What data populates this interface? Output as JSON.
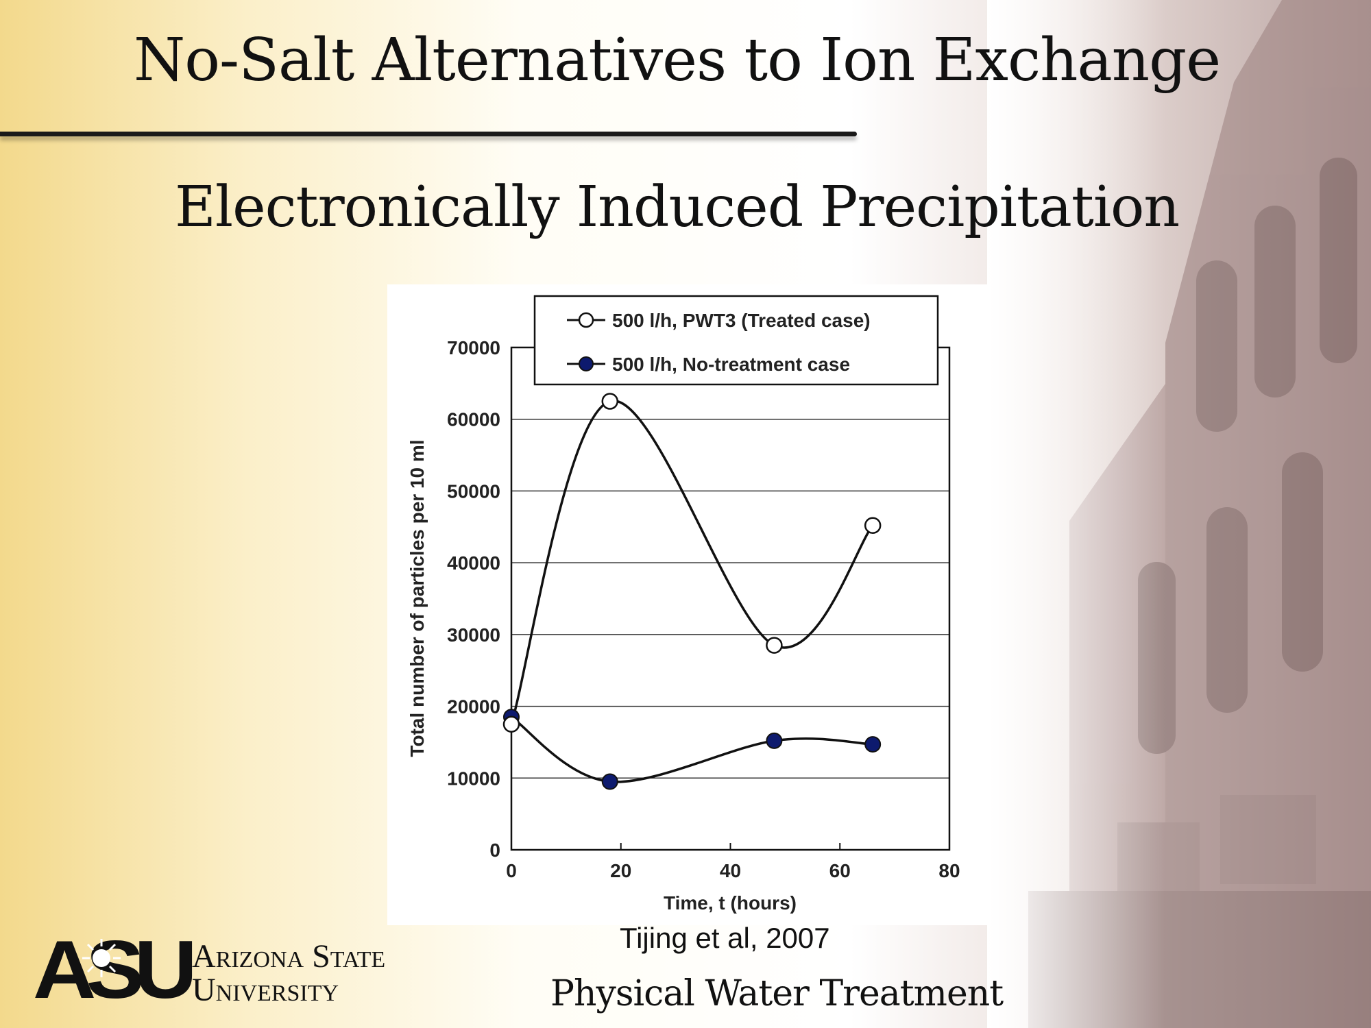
{
  "slide": {
    "title": "No-Salt Alternatives to Ion Exchange",
    "subtitle": "Electronically Induced Precipitation",
    "citation": "Tijing et al, 2007",
    "footer": "Physical Water Treatment",
    "logo": {
      "mark": "ASU",
      "line1": "Arizona State",
      "line2": "University"
    }
  },
  "chart_data": {
    "type": "line",
    "xlabel": "Time, t (hours)",
    "ylabel": "Total number of particles per 10 ml",
    "xlim": [
      0,
      80
    ],
    "ylim": [
      0,
      70000
    ],
    "x_ticks": [
      "0",
      "20",
      "40",
      "60",
      "80"
    ],
    "y_ticks": [
      "0",
      "10000",
      "20000",
      "30000",
      "40000",
      "50000",
      "60000",
      "70000"
    ],
    "grid": "horizontal",
    "legend_position": "top",
    "series": [
      {
        "name": "500 l/h, PWT3 (Treated case)",
        "marker": "open-circle",
        "x": [
          0,
          18,
          48,
          66
        ],
        "y": [
          17500,
          62500,
          28500,
          45200
        ]
      },
      {
        "name": "500 l/h, No-treatment case",
        "marker": "filled-circle",
        "x": [
          0,
          18,
          48,
          66
        ],
        "y": [
          18500,
          9500,
          15200,
          14700
        ]
      }
    ]
  }
}
